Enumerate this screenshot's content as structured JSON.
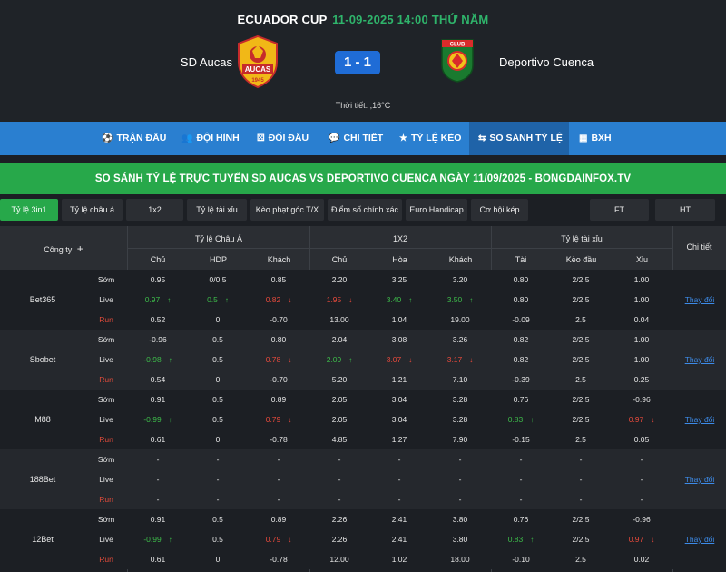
{
  "header": {
    "league": "ECUADOR CUP",
    "datetime": "11-09-2025 14:00 THỨ NĂM",
    "home_team": "SD Aucas",
    "away_team": "Deportivo Cuenca",
    "score": "1 - 1",
    "weather": "Thời tiết: ,16°C",
    "home_logo_text": "AUCAS",
    "home_logo_year": "1945",
    "away_logo_text": "CLUB"
  },
  "nav": [
    {
      "label": "TRẬN ĐẤU",
      "icon": "soccer-ball-icon"
    },
    {
      "label": "ĐỘI HÌNH",
      "icon": "team-icon"
    },
    {
      "label": "ĐỐI ĐẦU",
      "icon": "versus-icon"
    },
    {
      "label": "CHI TIẾT",
      "icon": "chat-icon"
    },
    {
      "label": "TỶ LỆ KÈO",
      "icon": "star-icon"
    },
    {
      "label": "SO SÁNH TỶ LỆ",
      "icon": "compare-icon"
    },
    {
      "label": "BXH",
      "icon": "table-icon"
    }
  ],
  "banner": "SO SÁNH TỶ LỆ TRỰC TUYẾN SD AUCAS VS DEPORTIVO CUENCA NGÀY 11/09/2025 - BONGDAINFOX.TV",
  "tabs": [
    "Tỷ lệ 3in1",
    "Tỷ lệ châu á",
    "1x2",
    "Tỷ lệ tài xỉu",
    "Kèo phạt góc T/X",
    "Điểm số chính xác",
    "Euro Handicap",
    "Cơ hội kép",
    "FT",
    "HT"
  ],
  "table_header": {
    "company": "Công ty",
    "group_asian": "Tỷ lệ Châu Á",
    "group_1x2": "1X2",
    "group_ou": "Tỷ lệ tài xỉu",
    "detail": "Chi tiết",
    "sub": [
      "Chủ",
      "HDP",
      "Khách",
      "Chủ",
      "Hòa",
      "Khách",
      "Tài",
      "Kèo đầu",
      "Xỉu"
    ]
  },
  "row_types": [
    "Sớm",
    "Live",
    "Run"
  ],
  "detail_link": "Thay đổi",
  "companies": [
    {
      "name": "Bet365",
      "rows": [
        [
          {
            "v": "0.95"
          },
          {
            "v": "0/0.5"
          },
          {
            "v": "0.85"
          },
          {
            "v": "2.20"
          },
          {
            "v": "3.25"
          },
          {
            "v": "3.20"
          },
          {
            "v": "0.80"
          },
          {
            "v": "2/2.5"
          },
          {
            "v": "1.00"
          }
        ],
        [
          {
            "v": "0.97",
            "d": "up"
          },
          {
            "v": "0.5",
            "d": "up"
          },
          {
            "v": "0.82",
            "d": "down"
          },
          {
            "v": "1.95",
            "d": "down"
          },
          {
            "v": "3.40",
            "d": "up"
          },
          {
            "v": "3.50",
            "d": "up"
          },
          {
            "v": "0.80"
          },
          {
            "v": "2/2.5"
          },
          {
            "v": "1.00"
          }
        ],
        [
          {
            "v": "0.52"
          },
          {
            "v": "0"
          },
          {
            "v": "-0.70"
          },
          {
            "v": "13.00"
          },
          {
            "v": "1.04"
          },
          {
            "v": "19.00"
          },
          {
            "v": "-0.09"
          },
          {
            "v": "2.5"
          },
          {
            "v": "0.04"
          }
        ]
      ]
    },
    {
      "name": "Sbobet",
      "rows": [
        [
          {
            "v": "-0.96"
          },
          {
            "v": "0.5"
          },
          {
            "v": "0.80"
          },
          {
            "v": "2.04"
          },
          {
            "v": "3.08"
          },
          {
            "v": "3.26"
          },
          {
            "v": "0.82"
          },
          {
            "v": "2/2.5"
          },
          {
            "v": "1.00"
          }
        ],
        [
          {
            "v": "-0.98",
            "d": "up"
          },
          {
            "v": "0.5"
          },
          {
            "v": "0.78",
            "d": "down"
          },
          {
            "v": "2.09",
            "d": "up"
          },
          {
            "v": "3.07",
            "d": "down"
          },
          {
            "v": "3.17",
            "d": "down"
          },
          {
            "v": "0.82"
          },
          {
            "v": "2/2.5"
          },
          {
            "v": "1.00"
          }
        ],
        [
          {
            "v": "0.54"
          },
          {
            "v": "0"
          },
          {
            "v": "-0.70"
          },
          {
            "v": "5.20"
          },
          {
            "v": "1.21"
          },
          {
            "v": "7.10"
          },
          {
            "v": "-0.39"
          },
          {
            "v": "2.5"
          },
          {
            "v": "0.25"
          }
        ]
      ]
    },
    {
      "name": "M88",
      "rows": [
        [
          {
            "v": "0.91"
          },
          {
            "v": "0.5"
          },
          {
            "v": "0.89"
          },
          {
            "v": "2.05"
          },
          {
            "v": "3.04"
          },
          {
            "v": "3.28"
          },
          {
            "v": "0.76"
          },
          {
            "v": "2/2.5"
          },
          {
            "v": "-0.96"
          }
        ],
        [
          {
            "v": "-0.99",
            "d": "up"
          },
          {
            "v": "0.5"
          },
          {
            "v": "0.79",
            "d": "down"
          },
          {
            "v": "2.05"
          },
          {
            "v": "3.04"
          },
          {
            "v": "3.28"
          },
          {
            "v": "0.83",
            "d": "up"
          },
          {
            "v": "2/2.5"
          },
          {
            "v": "0.97",
            "d": "down"
          }
        ],
        [
          {
            "v": "0.61"
          },
          {
            "v": "0"
          },
          {
            "v": "-0.78"
          },
          {
            "v": "4.85"
          },
          {
            "v": "1.27"
          },
          {
            "v": "7.90"
          },
          {
            "v": "-0.15"
          },
          {
            "v": "2.5"
          },
          {
            "v": "0.05"
          }
        ]
      ]
    },
    {
      "name": "188Bet",
      "rows": [
        [
          {
            "v": "-"
          },
          {
            "v": "-"
          },
          {
            "v": "-"
          },
          {
            "v": "-"
          },
          {
            "v": "-"
          },
          {
            "v": "-"
          },
          {
            "v": "-"
          },
          {
            "v": "-"
          },
          {
            "v": "-"
          }
        ],
        [
          {
            "v": "-"
          },
          {
            "v": "-"
          },
          {
            "v": "-"
          },
          {
            "v": "-"
          },
          {
            "v": "-"
          },
          {
            "v": "-"
          },
          {
            "v": "-"
          },
          {
            "v": "-"
          },
          {
            "v": "-"
          }
        ],
        [
          {
            "v": "-"
          },
          {
            "v": "-"
          },
          {
            "v": "-"
          },
          {
            "v": "-"
          },
          {
            "v": "-"
          },
          {
            "v": "-"
          },
          {
            "v": "-"
          },
          {
            "v": "-"
          },
          {
            "v": "-"
          }
        ]
      ]
    },
    {
      "name": "12Bet",
      "rows": [
        [
          {
            "v": "0.91"
          },
          {
            "v": "0.5"
          },
          {
            "v": "0.89"
          },
          {
            "v": "2.26"
          },
          {
            "v": "2.41"
          },
          {
            "v": "3.80"
          },
          {
            "v": "0.76"
          },
          {
            "v": "2/2.5"
          },
          {
            "v": "-0.96"
          }
        ],
        [
          {
            "v": "-0.99",
            "d": "up"
          },
          {
            "v": "0.5"
          },
          {
            "v": "0.79",
            "d": "down"
          },
          {
            "v": "2.26"
          },
          {
            "v": "2.41"
          },
          {
            "v": "3.80"
          },
          {
            "v": "0.83",
            "d": "up"
          },
          {
            "v": "2/2.5"
          },
          {
            "v": "0.97",
            "d": "down"
          }
        ],
        [
          {
            "v": "0.61"
          },
          {
            "v": "0"
          },
          {
            "v": "-0.78"
          },
          {
            "v": "12.00"
          },
          {
            "v": "1.02"
          },
          {
            "v": "18.00"
          },
          {
            "v": "-0.10"
          },
          {
            "v": "2.5"
          },
          {
            "v": "0.02"
          }
        ]
      ]
    }
  ],
  "colors": {
    "up": "#3dbb4a",
    "down": "#e84a3c",
    "accent_blue": "#2a7fd0",
    "accent_green": "#27a84a",
    "score_blue": "#1f6cd6",
    "link": "#3d8be8"
  }
}
